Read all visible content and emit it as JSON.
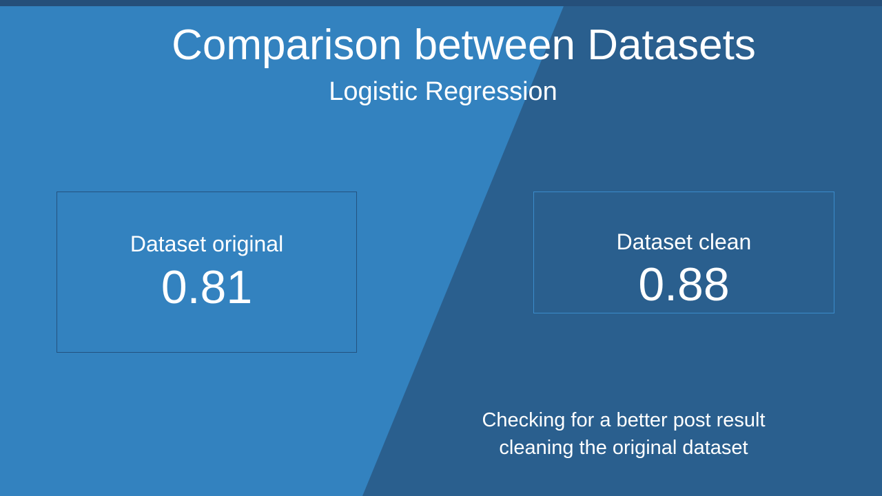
{
  "slide": {
    "title": "Comparison between Datasets",
    "subtitle": "Logistic Regression",
    "colors": {
      "dark_background": "#2a5f8e",
      "light_panel": "#3382bf",
      "top_band": "#254f7a",
      "text": "#ffffff"
    }
  },
  "cards": {
    "original": {
      "label": "Dataset original",
      "value": "0.81"
    },
    "clean": {
      "label": "Dataset clean",
      "value": "0.88"
    }
  },
  "note": {
    "line1": "Checking for a better post result",
    "line2": "cleaning the original dataset"
  }
}
